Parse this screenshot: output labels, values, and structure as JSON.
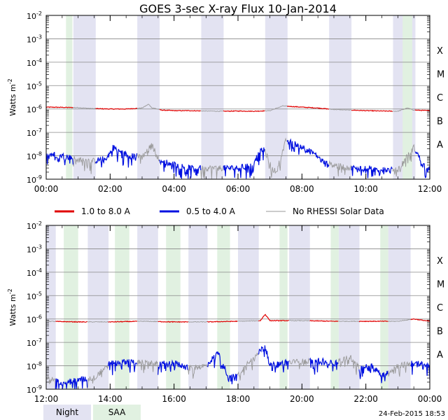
{
  "chart_data": {
    "type": "line",
    "title": "GOES 3-sec X-ray Flux   10-Jan-2014",
    "ylabel": "Watts m",
    "ylabel_sup": "-2",
    "yscale": "log",
    "ylim": [
      1e-09,
      0.01
    ],
    "y_ticks": [
      {
        "base": "10",
        "exp": "-2",
        "value": 0.01
      },
      {
        "base": "10",
        "exp": "-3",
        "value": 0.001
      },
      {
        "base": "10",
        "exp": "-4",
        "value": 0.0001
      },
      {
        "base": "10",
        "exp": "-5",
        "value": 1e-05
      },
      {
        "base": "10",
        "exp": "-6",
        "value": 1e-06
      },
      {
        "base": "10",
        "exp": "-7",
        "value": 1e-07
      },
      {
        "base": "10",
        "exp": "-8",
        "value": 1e-08
      },
      {
        "base": "10",
        "exp": "-9",
        "value": 1e-09
      }
    ],
    "flare_classes": [
      {
        "label": "X",
        "value": 0.000316
      },
      {
        "label": "M",
        "value": 3.16e-05
      },
      {
        "label": "C",
        "value": 3.16e-06
      },
      {
        "label": "B",
        "value": 3.16e-07
      },
      {
        "label": "A",
        "value": 3.16e-08
      }
    ],
    "legend": [
      {
        "label": "1.0 to 8.0 A",
        "color": "#e00000",
        "key": "long"
      },
      {
        "label": "0.5 to 4.0 A",
        "color": "#0010e0",
        "key": "short"
      },
      {
        "label": "No RHESSI Solar Data",
        "color": "#9a9a9a",
        "key": "none"
      }
    ],
    "shade_legend": [
      {
        "label": "Night",
        "color": "#e3e3f2"
      },
      {
        "label": "SAA",
        "color": "#e1f1e1"
      }
    ],
    "footer": "24-Feb-2015 18:53",
    "panels": [
      {
        "x_ticks": [
          "00:00",
          "02:00",
          "04:00",
          "06:00",
          "08:00",
          "10:00",
          "12:00"
        ],
        "xlim": [
          0,
          12
        ],
        "night": [
          [
            0.85,
            1.55
          ],
          [
            2.85,
            3.55
          ],
          [
            4.85,
            5.55
          ],
          [
            6.85,
            7.55
          ],
          [
            8.85,
            9.55
          ],
          [
            10.85,
            11.55
          ]
        ],
        "saa": [
          [
            0.62,
            0.82
          ],
          [
            11.15,
            11.45
          ]
        ],
        "long_channel": [
          [
            0,
            1.2e-06
          ],
          [
            1,
            1.15e-06
          ],
          [
            1.4,
            1.05e-06
          ],
          [
            2,
            1e-06
          ],
          [
            2.5,
            1e-06
          ],
          [
            3,
            1.1e-06
          ],
          [
            3.2,
            1.6e-06
          ],
          [
            3.3,
            1.15e-06
          ],
          [
            3.6,
            9e-07
          ],
          [
            4,
            8.5e-07
          ],
          [
            4.5,
            8.5e-07
          ],
          [
            5,
            8.2e-07
          ],
          [
            5.5,
            8e-07
          ],
          [
            6,
            8.2e-07
          ],
          [
            6.5,
            8e-07
          ],
          [
            7,
            8.5e-07
          ],
          [
            7.4,
            1.35e-06
          ],
          [
            8,
            1.2e-06
          ],
          [
            8.5,
            1.1e-06
          ],
          [
            9,
            9.5e-07
          ],
          [
            9.5,
            9e-07
          ],
          [
            10,
            8.5e-07
          ],
          [
            10.5,
            8.2e-07
          ],
          [
            11,
            8e-07
          ],
          [
            11.3,
            1.1e-06
          ],
          [
            11.5,
            9e-07
          ],
          [
            12,
            8.5e-07
          ]
        ],
        "short_channel": [
          [
            0,
            1.3e-08
          ],
          [
            0.5,
            1e-08
          ],
          [
            1,
            7e-09
          ],
          [
            1.5,
            6e-09
          ],
          [
            1.9,
            8e-09
          ],
          [
            2.1,
            2.4e-08
          ],
          [
            2.3,
            1.5e-08
          ],
          [
            2.6,
            1e-08
          ],
          [
            3,
            9e-09
          ],
          [
            3.3,
            3e-08
          ],
          [
            3.55,
            6e-09
          ],
          [
            3.8,
            5e-09
          ],
          [
            4.1,
            4e-09
          ],
          [
            4.5,
            3e-09
          ],
          [
            5,
            3e-09
          ],
          [
            5.5,
            3e-09
          ],
          [
            6,
            3e-09
          ],
          [
            6.4,
            4e-09
          ],
          [
            6.8,
            2.2e-08
          ],
          [
            7.05,
            3e-09
          ],
          [
            7.2,
            2e-09
          ],
          [
            7.5,
            4.5e-08
          ],
          [
            8,
            2.5e-08
          ],
          [
            8.4,
            1.2e-08
          ],
          [
            8.7,
            5e-09
          ],
          [
            9,
            4e-09
          ],
          [
            9.5,
            3e-09
          ],
          [
            10,
            3e-09
          ],
          [
            10.5,
            2.5e-09
          ],
          [
            11,
            2.5e-09
          ],
          [
            11.5,
            2.3e-08
          ],
          [
            11.8,
            4e-09
          ],
          [
            12,
            3e-09
          ]
        ]
      },
      {
        "x_ticks": [
          "12:00",
          "14:00",
          "16:00",
          "18:00",
          "20:00",
          "22:00",
          "00:00"
        ],
        "xlim": [
          12,
          24
        ],
        "night": [
          [
            12.0,
            12.3
          ],
          [
            13.3,
            13.95
          ],
          [
            14.85,
            15.5
          ],
          [
            16.45,
            17.05
          ],
          [
            18.0,
            18.65
          ],
          [
            19.6,
            20.25
          ],
          [
            21.15,
            21.8
          ],
          [
            22.7,
            23.4
          ]
        ],
        "saa": [
          [
            12.55,
            13.0
          ],
          [
            14.15,
            14.6
          ],
          [
            15.75,
            16.2
          ],
          [
            17.35,
            17.75
          ],
          [
            19.3,
            19.55
          ],
          [
            20.9,
            21.15
          ],
          [
            22.45,
            22.7
          ]
        ],
        "long_channel": [
          [
            12,
            8e-07
          ],
          [
            13,
            7.5e-07
          ],
          [
            14,
            7.5e-07
          ],
          [
            15,
            8e-07
          ],
          [
            16,
            7.5e-07
          ],
          [
            17,
            7.5e-07
          ],
          [
            18,
            8e-07
          ],
          [
            18.7,
            8.5e-07
          ],
          [
            18.85,
            1.6e-06
          ],
          [
            19,
            8.5e-07
          ],
          [
            20,
            8.5e-07
          ],
          [
            21,
            8e-07
          ],
          [
            22,
            8e-07
          ],
          [
            23,
            8e-07
          ],
          [
            23.5,
            1e-06
          ],
          [
            24,
            8e-07
          ]
        ],
        "short_channel": [
          [
            12,
            3e-09
          ],
          [
            12.5,
            2e-09
          ],
          [
            13,
            2.5e-09
          ],
          [
            13.5,
            3e-09
          ],
          [
            14,
            1.3e-08
          ],
          [
            14.5,
            1.5e-08
          ],
          [
            15,
            1.4e-08
          ],
          [
            15.5,
            1.2e-08
          ],
          [
            16,
            1.3e-08
          ],
          [
            16.5,
            8e-09
          ],
          [
            17,
            1e-08
          ],
          [
            17.4,
            4e-08
          ],
          [
            17.7,
            3e-09
          ],
          [
            18,
            4e-09
          ],
          [
            18.4,
            2e-08
          ],
          [
            18.85,
            7e-08
          ],
          [
            19,
            1e-08
          ],
          [
            19.5,
            1.4e-08
          ],
          [
            20,
            1.5e-08
          ],
          [
            20.5,
            1.8e-08
          ],
          [
            21,
            1.2e-08
          ],
          [
            21.5,
            2.5e-08
          ],
          [
            21.8,
            8e-09
          ],
          [
            22.2,
            1e-08
          ],
          [
            22.5,
            4e-09
          ],
          [
            23,
            1e-08
          ],
          [
            23.5,
            1.3e-08
          ],
          [
            24,
            1e-08
          ]
        ]
      }
    ]
  }
}
